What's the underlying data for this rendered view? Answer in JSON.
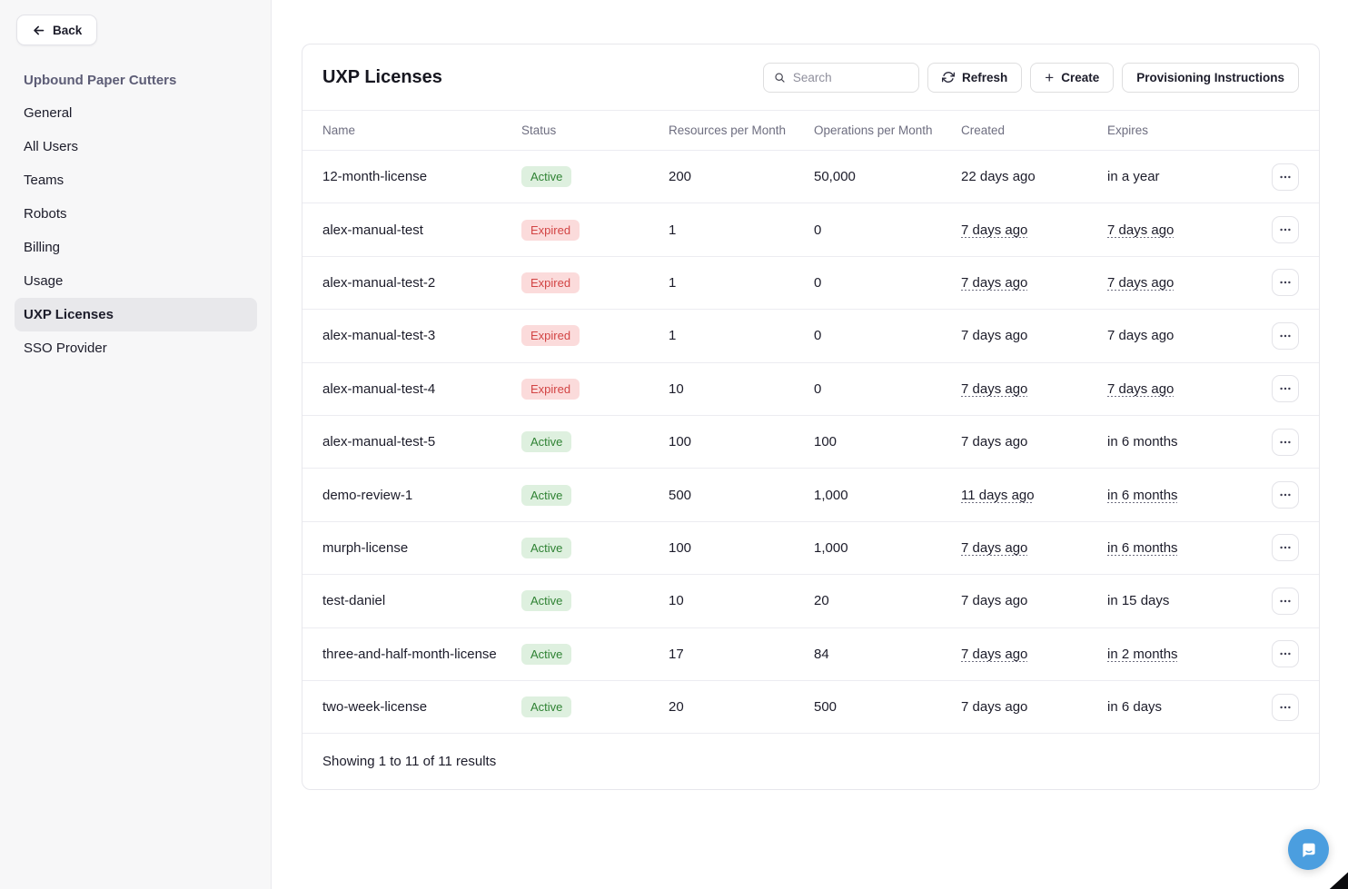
{
  "sidebar": {
    "back_label": "Back",
    "org_name": "Upbound Paper Cutters",
    "items": [
      {
        "label": "General",
        "selected": false
      },
      {
        "label": "All Users",
        "selected": false
      },
      {
        "label": "Teams",
        "selected": false
      },
      {
        "label": "Robots",
        "selected": false
      },
      {
        "label": "Billing",
        "selected": false
      },
      {
        "label": "Usage",
        "selected": false
      },
      {
        "label": "UXP Licenses",
        "selected": true
      },
      {
        "label": "SSO Provider",
        "selected": false
      }
    ]
  },
  "main": {
    "title": "UXP Licenses",
    "search_placeholder": "Search",
    "refresh_label": "Refresh",
    "create_label": "Create",
    "provisioning_label": "Provisioning Instructions",
    "table": {
      "columns": [
        "Name",
        "Status",
        "Resources per Month",
        "Operations per Month",
        "Created",
        "Expires"
      ],
      "rows": [
        {
          "name": "12-month-license",
          "status": "Active",
          "resources": "200",
          "operations": "50,000",
          "created": "22 days ago",
          "expires": "in a year"
        },
        {
          "name": "alex-manual-test",
          "status": "Expired",
          "resources": "1",
          "operations": "0",
          "created": "7 days ago",
          "expires": "7 days ago"
        },
        {
          "name": "alex-manual-test-2",
          "status": "Expired",
          "resources": "1",
          "operations": "0",
          "created": "7 days ago",
          "expires": "7 days ago"
        },
        {
          "name": "alex-manual-test-3",
          "status": "Expired",
          "resources": "1",
          "operations": "0",
          "created": "7 days ago",
          "expires": "7 days ago"
        },
        {
          "name": "alex-manual-test-4",
          "status": "Expired",
          "resources": "10",
          "operations": "0",
          "created": "7 days ago",
          "expires": "7 days ago"
        },
        {
          "name": "alex-manual-test-5",
          "status": "Active",
          "resources": "100",
          "operations": "100",
          "created": "7 days ago",
          "expires": "in 6 months"
        },
        {
          "name": "demo-review-1",
          "status": "Active",
          "resources": "500",
          "operations": "1,000",
          "created": "11 days ago",
          "expires": "in 6 months"
        },
        {
          "name": "murph-license",
          "status": "Active",
          "resources": "100",
          "operations": "1,000",
          "created": "7 days ago",
          "expires": "in 6 months"
        },
        {
          "name": "test-daniel",
          "status": "Active",
          "resources": "10",
          "operations": "20",
          "created": "7 days ago",
          "expires": "in 15 days"
        },
        {
          "name": "three-and-half-month-license",
          "status": "Active",
          "resources": "17",
          "operations": "84",
          "created": "7 days ago",
          "expires": "in 2 months"
        },
        {
          "name": "two-week-license",
          "status": "Active",
          "resources": "20",
          "operations": "500",
          "created": "7 days ago",
          "expires": "in 6 days"
        }
      ],
      "footer": "Showing 1 to 11 of 11 results"
    }
  },
  "icons": {
    "back": "arrow-left-icon",
    "search": "search-icon",
    "refresh": "refresh-icon",
    "create": "plus-icon",
    "row_actions": "ellipsis-icon",
    "chat": "chat-bubble-icon"
  },
  "colors": {
    "active_badge_bg": "#def0df",
    "active_badge_text": "#2f8233",
    "expired_badge_bg": "#fbdbdb",
    "expired_badge_text": "#d24444",
    "sidebar_bg": "#f7f7f8",
    "selected_item_bg": "#e8e8eb",
    "chat_launcher_blue": "#4b9edf"
  }
}
